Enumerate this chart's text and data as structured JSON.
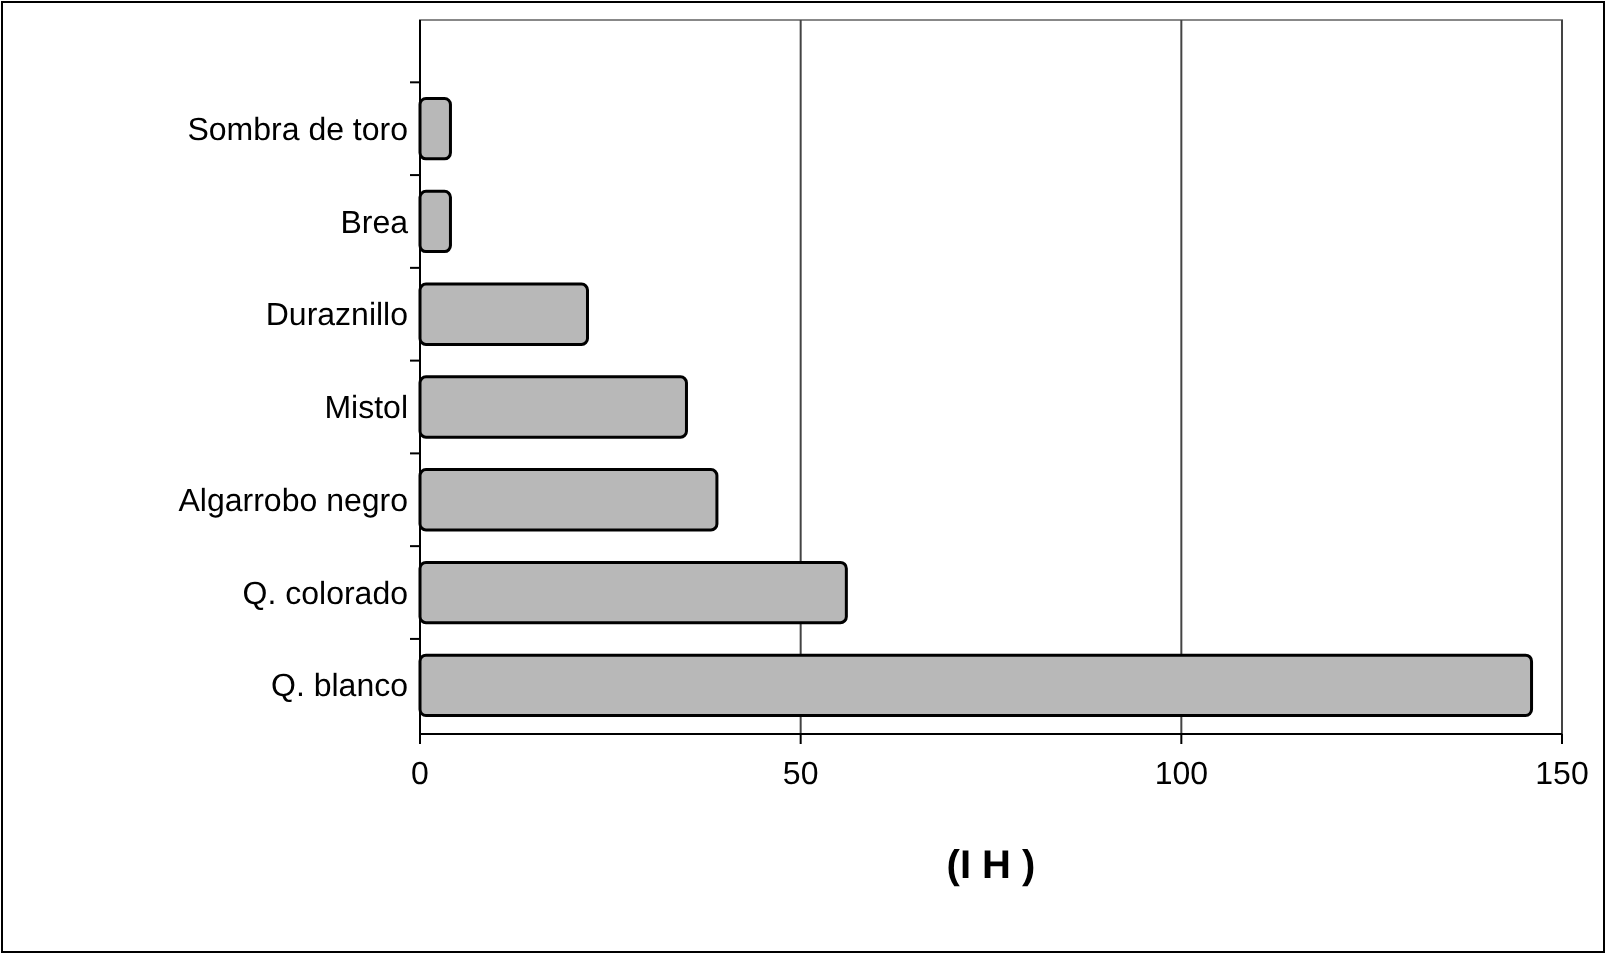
{
  "chart_data": {
    "type": "bar",
    "orientation": "horizontal",
    "xlabel": "(I H )",
    "categories": [
      "Sombra de toro",
      "Brea",
      "Duraznillo",
      "Mistol",
      "Algarrobo negro",
      "Q. colorado",
      "Q. blanco"
    ],
    "values": [
      4,
      4,
      22,
      35,
      39,
      56,
      146
    ],
    "color": "#b8b8b8",
    "xlim": [
      0,
      150
    ],
    "xticks": [
      0,
      50,
      100,
      150
    ],
    "grid": "x"
  }
}
